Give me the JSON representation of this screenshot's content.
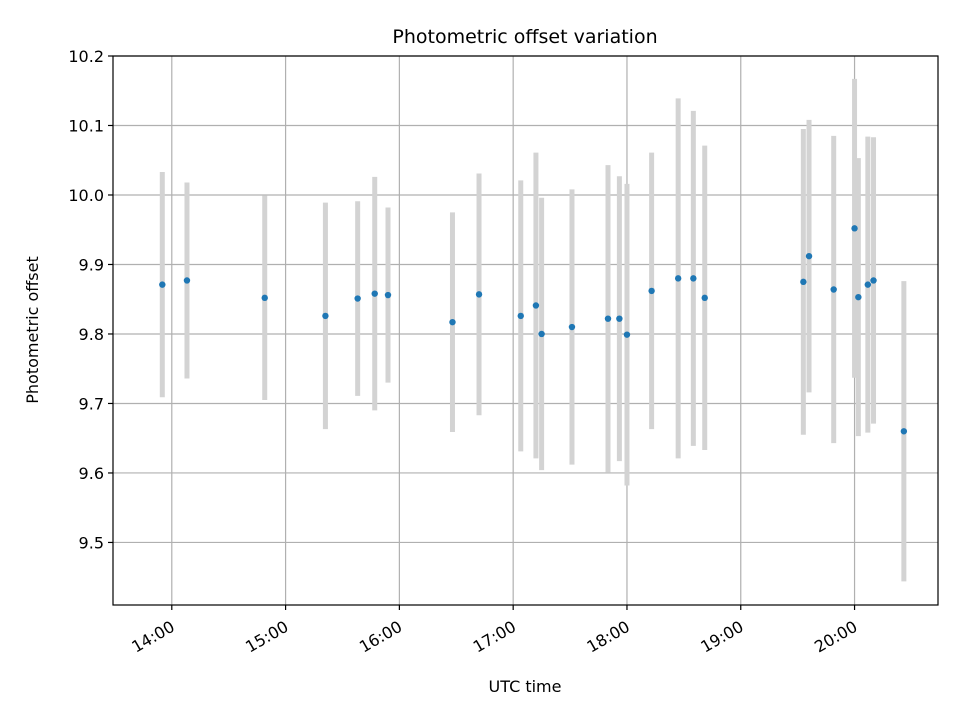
{
  "chart_data": {
    "type": "scatter",
    "title": "Photometric offset variation",
    "xlabel": "UTC time",
    "ylabel": "Photometric offset",
    "x_tick_labels": [
      "14:00",
      "15:00",
      "16:00",
      "17:00",
      "18:00",
      "19:00",
      "20:00"
    ],
    "x_ticks": [
      "14:00",
      "15:00",
      "16:00",
      "17:00",
      "18:00",
      "19:00",
      "20:00"
    ],
    "xlim": [
      "13:29",
      "20:44"
    ],
    "ylim": [
      9.41,
      10.2
    ],
    "y_ticks": [
      9.5,
      9.6,
      9.7,
      9.8,
      9.9,
      10.0,
      10.1,
      10.2
    ],
    "y_tick_labels": [
      "9.5",
      "9.6",
      "9.7",
      "9.8",
      "9.9",
      "10.0",
      "10.1",
      "10.2"
    ],
    "grid": true,
    "marker_color": "#1f77b4",
    "errorbar_color": "#d3d3d3",
    "points": [
      {
        "x": "13:55",
        "y": 9.871,
        "err": 0.162
      },
      {
        "x": "14:08",
        "y": 9.877,
        "err": 0.141
      },
      {
        "x": "14:49",
        "y": 9.852,
        "err": 0.147
      },
      {
        "x": "15:21",
        "y": 9.826,
        "err": 0.163
      },
      {
        "x": "15:38",
        "y": 9.851,
        "err": 0.14
      },
      {
        "x": "15:47",
        "y": 9.858,
        "err": 0.168
      },
      {
        "x": "15:54",
        "y": 9.856,
        "err": 0.126
      },
      {
        "x": "16:28",
        "y": 9.817,
        "err": 0.158
      },
      {
        "x": "16:42",
        "y": 9.857,
        "err": 0.174
      },
      {
        "x": "17:04",
        "y": 9.826,
        "err": 0.195
      },
      {
        "x": "17:12",
        "y": 9.841,
        "err": 0.22
      },
      {
        "x": "17:15",
        "y": 9.8,
        "err": 0.196
      },
      {
        "x": "17:31",
        "y": 9.81,
        "err": 0.198
      },
      {
        "x": "17:50",
        "y": 9.822,
        "err": 0.221
      },
      {
        "x": "17:56",
        "y": 9.822,
        "err": 0.205
      },
      {
        "x": "18:00",
        "y": 9.799,
        "err": 0.217
      },
      {
        "x": "18:13",
        "y": 9.862,
        "err": 0.199
      },
      {
        "x": "18:27",
        "y": 9.88,
        "err": 0.259
      },
      {
        "x": "18:35",
        "y": 9.88,
        "err": 0.241
      },
      {
        "x": "18:41",
        "y": 9.852,
        "err": 0.219
      },
      {
        "x": "19:33",
        "y": 9.875,
        "err": 0.22
      },
      {
        "x": "19:36",
        "y": 9.912,
        "err": 0.196
      },
      {
        "x": "19:49",
        "y": 9.864,
        "err": 0.221
      },
      {
        "x": "20:00",
        "y": 9.952,
        "err": 0.215
      },
      {
        "x": "20:02",
        "y": 9.853,
        "err": 0.2
      },
      {
        "x": "20:07",
        "y": 9.871,
        "err": 0.213
      },
      {
        "x": "20:10",
        "y": 9.877,
        "err": 0.206
      },
      {
        "x": "20:26",
        "y": 9.66,
        "err": 0.216
      }
    ]
  }
}
